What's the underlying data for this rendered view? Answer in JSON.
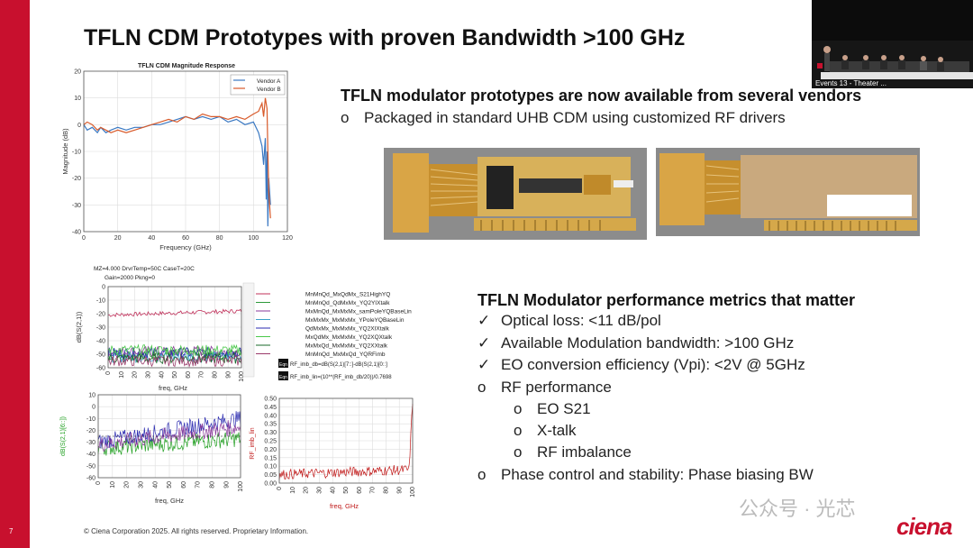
{
  "slide": {
    "title": "TFLN CDM Prototypes with proven Bandwidth >100 GHz",
    "number": "7",
    "footer": "© Ciena Corporation 2025. All rights reserved. Proprietary Information.",
    "logo": "ciena",
    "watermark": "公众号 · 光芯",
    "video_caption": "Events 13 - Theater ...",
    "brand_color": "#c8102e"
  },
  "section1": {
    "heading": "TFLN modulator prototypes are now available from several vendors",
    "bullets": [
      {
        "marker": "o",
        "text": "Packaged in standard UHB CDM using customized RF drivers"
      }
    ]
  },
  "section2": {
    "heading": "TFLN Modulator performance metrics that matter",
    "bullets": [
      {
        "marker": "✓",
        "text": "Optical loss: <11 dB/pol"
      },
      {
        "marker": "✓",
        "text": "Available Modulation bandwidth: >100 GHz"
      },
      {
        "marker": "✓",
        "text": "EO conversion efficiency (Vpi): <2V @ 5GHz"
      },
      {
        "marker": "o",
        "text": "RF performance"
      },
      {
        "marker": "o",
        "text": "EO S21"
      },
      {
        "marker": "o",
        "text": "X-talk"
      },
      {
        "marker": "o",
        "text": "RF imbalance"
      },
      {
        "marker": "o",
        "text": "Phase control and stability: Phase biasing BW"
      }
    ]
  },
  "chart_data": [
    {
      "type": "line",
      "title": "TFLN CDM Magnitude Response",
      "xlabel": "Frequency (GHz)",
      "ylabel": "Magnitude (dB)",
      "xlim": [
        0,
        120
      ],
      "ylim": [
        -40,
        20
      ],
      "xticks": [
        "0",
        "20",
        "40",
        "60",
        "80",
        "100",
        "120"
      ],
      "yticks": [
        "20",
        "10",
        "0",
        "-10",
        "-20",
        "-30",
        "-40"
      ],
      "grid": true,
      "legend": "top-right",
      "series": [
        {
          "name": "Vendor A",
          "color": "#3a78c2",
          "x": [
            0,
            2,
            5,
            8,
            10,
            13,
            16,
            20,
            25,
            30,
            35,
            40,
            45,
            50,
            55,
            60,
            65,
            70,
            75,
            80,
            85,
            90,
            95,
            100,
            103,
            105,
            106,
            107,
            107.5,
            108,
            108.5,
            109,
            110
          ],
          "y": [
            0,
            -2,
            -1,
            -3,
            -1,
            -3,
            -2,
            -1,
            -2,
            -1,
            -1,
            0,
            0,
            1,
            2,
            3,
            2,
            3,
            2,
            3,
            1,
            2,
            0,
            1,
            -3,
            -8,
            -15,
            -5,
            -28,
            -10,
            -38,
            -20,
            -30
          ]
        },
        {
          "name": "Vendor B",
          "color": "#d85a2a",
          "x": [
            0,
            2,
            5,
            8,
            10,
            13,
            16,
            20,
            25,
            30,
            35,
            40,
            45,
            50,
            55,
            60,
            65,
            70,
            75,
            80,
            85,
            90,
            95,
            100,
            103,
            105,
            106,
            107,
            108,
            108.5,
            109,
            110
          ],
          "y": [
            0,
            1,
            0,
            -2,
            -1,
            -2,
            -3,
            -2,
            -3,
            -2,
            -1,
            0,
            1,
            2,
            1,
            3,
            2,
            4,
            3,
            3,
            2,
            3,
            2,
            4,
            5,
            8,
            3,
            10,
            6,
            -10,
            -25,
            -35
          ]
        }
      ]
    },
    {
      "type": "line",
      "title": "",
      "header": [
        "MZ=4.000  DrvrTemp=50C  CaseT=20C",
        "Gain=2000  Pkng=0"
      ],
      "xlabel": "freq, GHz",
      "ylabel": "dB(S(2,1))",
      "xlim": [
        0,
        100
      ],
      "ylim": [
        -60,
        0
      ],
      "xticks": [
        "0",
        "10",
        "20",
        "30",
        "40",
        "50",
        "60",
        "70",
        "80",
        "90",
        "100"
      ],
      "yticks": [
        "0",
        "-10",
        "-20",
        "-30",
        "-40",
        "-50",
        "-60"
      ],
      "legend": "right",
      "series": [
        {
          "name": "MnMnQd_MxQdMx_S21HighYQ",
          "color": "#c0305a",
          "level": -21
        },
        {
          "name": "MnMnQd_QdMxMx_YQ2YIXtalk",
          "color": "#2d9a3a",
          "level": -50
        },
        {
          "name": "MxMnQd_MxMxMx_samPoleYQBaseLin",
          "color": "#8a3a9a",
          "level": -48
        },
        {
          "name": "MxMxMx_MxMxMx_YPoleYQBaseLin",
          "color": "#3aa0c8",
          "level": -52
        },
        {
          "name": "QdMxMx_MxMxMx_YQ2XIXtalk",
          "color": "#2a2ab0",
          "level": -49
        },
        {
          "name": "MxQdMx_MxMxMx_YQ2XQXtalk",
          "color": "#4ac84a",
          "level": -47
        },
        {
          "name": "MxMxQd_MxMxMx_YQ2XXtalk",
          "color": "#1a6a2a",
          "level": -53
        },
        {
          "name": "MnMnQd_MxMxQd_YQRFimb",
          "color": "#9a3a6a",
          "level": -55
        }
      ],
      "equations": [
        "RF_imb_db=dB(S(2,1)[7::]-dB(S(2,1)[0::]",
        "RF_imb_lin=(10**(RF_imb_db/20))/0.7698"
      ]
    },
    {
      "type": "line",
      "title": "",
      "xlabel": "freq, GHz",
      "ylabel": "dB(S(2,1)[6::])",
      "xlim": [
        0,
        100
      ],
      "ylim": [
        -60,
        10
      ],
      "xticks": [
        "0",
        "10",
        "20",
        "30",
        "40",
        "50",
        "60",
        "70",
        "80",
        "90",
        "100"
      ],
      "yticks": [
        "10",
        "0",
        "-10",
        "-20",
        "-30",
        "-40",
        "-50",
        "-60"
      ],
      "series": [
        {
          "name": "",
          "color": "#22a022",
          "level": -35
        },
        {
          "name": "",
          "color": "#2a2ab0",
          "level": -30
        },
        {
          "name": "",
          "color": "#8a3a9a",
          "level": -32
        }
      ]
    },
    {
      "type": "line",
      "title": "",
      "xlabel": "freq, GHz",
      "ylabel": "RF_imb_lin",
      "xlim": [
        0,
        100
      ],
      "ylim": [
        0,
        0.5
      ],
      "xticks": [
        "0",
        "10",
        "20",
        "30",
        "40",
        "50",
        "60",
        "70",
        "80",
        "90",
        "100"
      ],
      "yticks": [
        "0.50",
        "0.45",
        "0.40",
        "0.35",
        "0.30",
        "0.25",
        "0.20",
        "0.15",
        "0.10",
        "0.05",
        "0.00"
      ],
      "series": [
        {
          "name": "",
          "color": "#c01818",
          "level": 0.05
        }
      ]
    }
  ]
}
